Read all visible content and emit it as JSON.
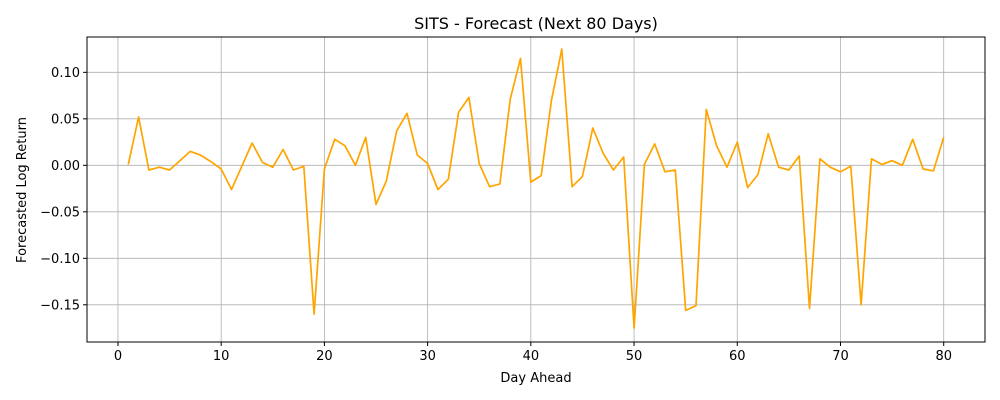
{
  "chart_data": {
    "type": "line",
    "title": "SITS - Forecast (Next 80 Days)",
    "xlabel": "Day Ahead",
    "ylabel": "Forecasted Log Return",
    "xlim": [
      -3,
      84
    ],
    "ylim": [
      -0.19,
      0.138
    ],
    "x_ticks": [
      0,
      10,
      20,
      30,
      40,
      50,
      60,
      70,
      80
    ],
    "x_tick_labels": [
      "0",
      "10",
      "20",
      "30",
      "40",
      "50",
      "60",
      "70",
      "80"
    ],
    "y_ticks": [
      -0.15,
      -0.1,
      -0.05,
      0.0,
      0.05,
      0.1
    ],
    "y_tick_labels": [
      "−0.15",
      "−0.10",
      "−0.05",
      "0.00",
      "0.05",
      "0.10"
    ],
    "grid": true,
    "line_color": "#ffa500",
    "series": [
      {
        "x": [
          1,
          2,
          3,
          4,
          5,
          6,
          7,
          8,
          9,
          10,
          11,
          12,
          13,
          14,
          15,
          16,
          17,
          18,
          19,
          20,
          21,
          22,
          23,
          24,
          25,
          26,
          27,
          28,
          29,
          30,
          31,
          32,
          33,
          34,
          35,
          36,
          37,
          38,
          39,
          40,
          41,
          42,
          43,
          44,
          45,
          46,
          47,
          48,
          49,
          50,
          51,
          52,
          53,
          54,
          55,
          56,
          57,
          58,
          59,
          60,
          61,
          62,
          63,
          64,
          65,
          66,
          67,
          68,
          69,
          70,
          71,
          72,
          73,
          74,
          75,
          76,
          77,
          78,
          79,
          80
        ],
        "values": [
          0.001,
          0.052,
          -0.005,
          -0.002,
          -0.005,
          0.005,
          0.015,
          0.011,
          0.004,
          -0.004,
          -0.026,
          -0.001,
          0.024,
          0.003,
          -0.002,
          0.017,
          -0.005,
          -0.001,
          -0.16,
          -0.004,
          0.028,
          0.021,
          0.0,
          0.03,
          -0.042,
          -0.017,
          0.037,
          0.056,
          0.011,
          0.002,
          -0.026,
          -0.015,
          0.057,
          0.073,
          0.002,
          -0.023,
          -0.02,
          0.071,
          0.115,
          -0.018,
          -0.011,
          0.07,
          0.125,
          -0.023,
          -0.012,
          0.04,
          0.013,
          -0.005,
          0.009,
          -0.175,
          0.001,
          0.023,
          -0.007,
          -0.005,
          -0.156,
          -0.151,
          0.06,
          0.021,
          -0.002,
          0.025,
          -0.024,
          -0.01,
          0.034,
          -0.002,
          -0.005,
          0.01,
          -0.154,
          0.007,
          -0.002,
          -0.007,
          -0.001,
          -0.15,
          0.007,
          0.001,
          0.005,
          0.0,
          0.028,
          -0.004,
          -0.006,
          0.03
        ]
      }
    ]
  }
}
